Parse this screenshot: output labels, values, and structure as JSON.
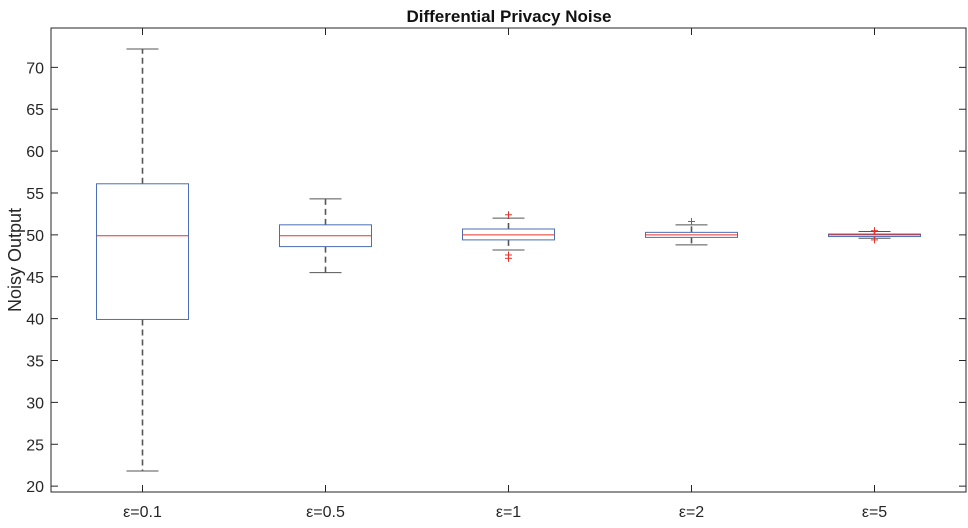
{
  "chart_data": {
    "type": "box",
    "title": "Differential Privacy Noise",
    "xlabel": "",
    "ylabel": "Noisy Output",
    "ylim": [
      19.3,
      74.7
    ],
    "yticks": [
      20,
      25,
      30,
      35,
      40,
      45,
      50,
      55,
      60,
      65,
      70
    ],
    "grid": false,
    "categories": [
      "ε=0.1",
      "ε=0.5",
      "ε=1",
      "ε=2",
      "ε=5"
    ],
    "boxes": [
      {
        "category": "ε=0.1",
        "whisker_low": 21.8,
        "q1": 39.9,
        "median": 49.9,
        "q3": 56.1,
        "whisker_high": 72.2,
        "outliers": []
      },
      {
        "category": "ε=0.5",
        "whisker_low": 45.5,
        "q1": 48.6,
        "median": 49.9,
        "q3": 51.2,
        "whisker_high": 54.3,
        "outliers": []
      },
      {
        "category": "ε=1",
        "whisker_low": 48.2,
        "q1": 49.4,
        "median": 50.0,
        "q3": 50.7,
        "whisker_high": 52.0,
        "outliers": [
          52.4,
          47.6,
          47.2
        ]
      },
      {
        "category": "ε=2",
        "whisker_low": 48.8,
        "q1": 49.7,
        "median": 50.0,
        "q3": 50.3,
        "whisker_high": 51.2,
        "outliers": [
          51.6
        ]
      },
      {
        "category": "ε=5",
        "whisker_low": 49.6,
        "q1": 49.8,
        "median": 50.0,
        "q3": 50.1,
        "whisker_high": 50.4,
        "outliers": [
          50.5,
          49.4
        ]
      }
    ],
    "colors": {
      "box": "#4a6fb5",
      "median": "#e8312a",
      "whisker": "#555555",
      "outlier": "#e8312a",
      "axis": "#262626"
    }
  }
}
